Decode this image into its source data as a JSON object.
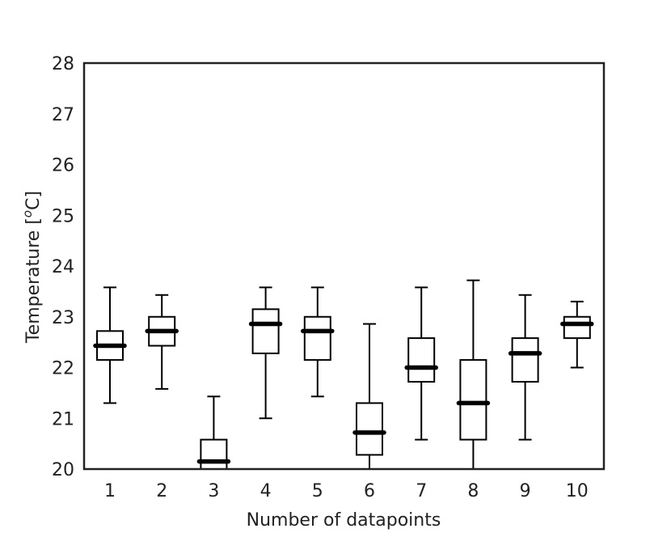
{
  "chart_data": {
    "type": "box",
    "title": "",
    "xlabel": "Number of datapoints",
    "ylabel_main": "Temperature [",
    "ylabel_sup": "o",
    "ylabel_end": "C]",
    "ylim": [
      20,
      28
    ],
    "yticks": [
      20,
      21,
      22,
      23,
      24,
      25,
      26,
      27,
      28
    ],
    "grid": false,
    "categories": [
      "1",
      "2",
      "3",
      "4",
      "5",
      "6",
      "7",
      "8",
      "9",
      "10"
    ],
    "boxes": [
      {
        "category": "1",
        "whisker_low": 21.3,
        "q1": 22.15,
        "median": 22.43,
        "q3": 22.72,
        "whisker_high": 23.58
      },
      {
        "category": "2",
        "whisker_low": 21.58,
        "q1": 22.43,
        "median": 22.72,
        "q3": 23.0,
        "whisker_high": 23.43
      },
      {
        "category": "3",
        "whisker_low": 20.0,
        "q1": 20.0,
        "median": 20.15,
        "q3": 20.58,
        "whisker_high": 21.43
      },
      {
        "category": "4",
        "whisker_low": 21.0,
        "q1": 22.28,
        "median": 22.86,
        "q3": 23.15,
        "whisker_high": 23.58
      },
      {
        "category": "5",
        "whisker_low": 21.43,
        "q1": 22.15,
        "median": 22.72,
        "q3": 23.0,
        "whisker_high": 23.58
      },
      {
        "category": "6",
        "whisker_low": 20.0,
        "q1": 20.28,
        "median": 20.72,
        "q3": 21.3,
        "whisker_high": 22.86
      },
      {
        "category": "7",
        "whisker_low": 20.58,
        "q1": 21.72,
        "median": 22.0,
        "q3": 22.58,
        "whisker_high": 23.58
      },
      {
        "category": "8",
        "whisker_low": 20.0,
        "q1": 20.58,
        "median": 21.3,
        "q3": 22.15,
        "whisker_high": 23.72
      },
      {
        "category": "9",
        "whisker_low": 20.58,
        "q1": 21.72,
        "median": 22.28,
        "q3": 22.58,
        "whisker_high": 23.43
      },
      {
        "category": "10",
        "whisker_low": 22.0,
        "q1": 22.58,
        "median": 22.86,
        "q3": 23.0,
        "whisker_high": 23.3
      }
    ],
    "colors": {
      "box": "#000000",
      "median": "#000000",
      "frame": "#222222",
      "text": "#222222"
    }
  }
}
